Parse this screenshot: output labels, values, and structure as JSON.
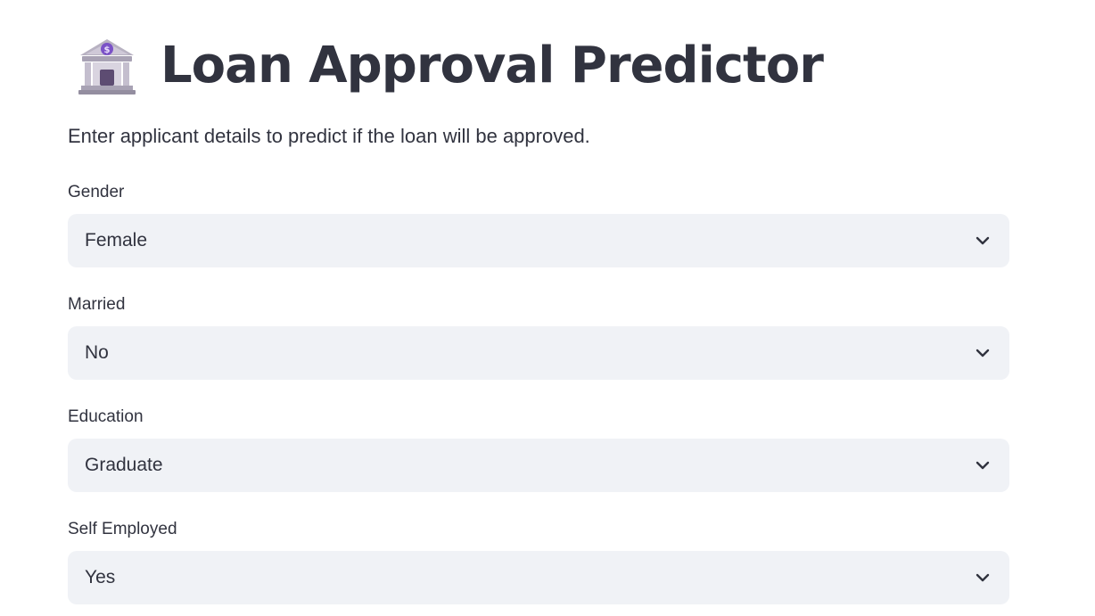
{
  "header": {
    "icon": "bank-icon",
    "title": "Loan Approval Predictor"
  },
  "subtitle": "Enter applicant details to predict if the loan will be approved.",
  "fields": [
    {
      "label": "Gender",
      "value": "Female",
      "icon": "chevron-down-icon"
    },
    {
      "label": "Married",
      "value": "No",
      "icon": "chevron-down-icon"
    },
    {
      "label": "Education",
      "value": "Graduate",
      "icon": "chevron-down-icon"
    },
    {
      "label": "Self Employed",
      "value": "Yes",
      "icon": "chevron-down-icon"
    }
  ],
  "colors": {
    "text": "#31333f",
    "select_background": "#f0f2f6",
    "page_background": "#ffffff"
  }
}
